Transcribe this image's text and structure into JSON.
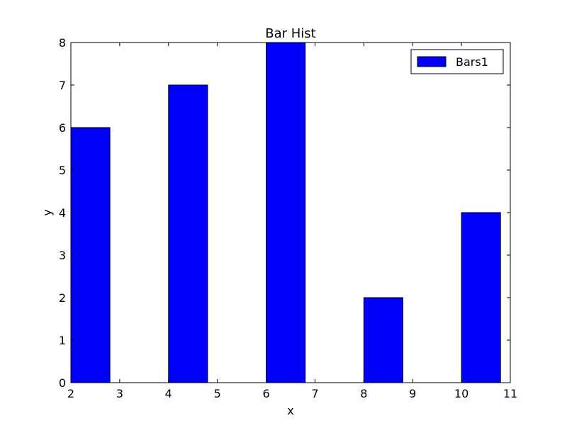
{
  "chart_data": {
    "type": "bar",
    "title": "Bar Hist",
    "xlabel": "x",
    "ylabel": "y",
    "xlim": [
      2,
      11
    ],
    "ylim": [
      0,
      8
    ],
    "xticks": [
      2,
      3,
      4,
      5,
      6,
      7,
      8,
      9,
      10,
      11
    ],
    "yticks": [
      0,
      1,
      2,
      3,
      4,
      5,
      6,
      7,
      8
    ],
    "bar_width": 0.8,
    "grid": false,
    "legend_position": "top-right",
    "series": [
      {
        "name": "Bars1",
        "color": "#0000ff",
        "edgecolor": "#000000",
        "x": [
          2,
          4,
          6,
          8,
          10
        ],
        "values": [
          6,
          7,
          8,
          2,
          4
        ]
      }
    ]
  }
}
